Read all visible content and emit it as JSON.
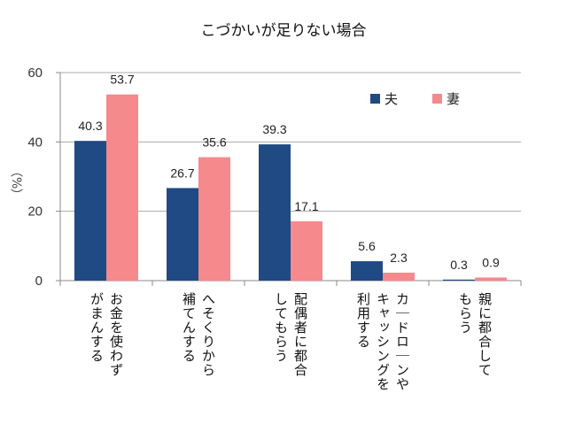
{
  "chart_data": {
    "type": "bar",
    "title": "こづかいが足りない場合",
    "xlabel": "",
    "ylabel": "（%）",
    "ylim": [
      0,
      60
    ],
    "yticks": [
      0,
      20,
      40,
      60
    ],
    "grid": true,
    "legend_position": "top-right",
    "categories": [
      "お金を使わず\nがまんする",
      "へそくりから\n補てんする",
      "配偶者に都合\nしてもらう",
      "カードローンや\nキャッシングを\n利用する",
      "親に都合して\nもらう"
    ],
    "series": [
      {
        "name": "夫",
        "color": "#1f4a84",
        "values": [
          40.3,
          26.7,
          39.3,
          5.6,
          0.3
        ]
      },
      {
        "name": "妻",
        "color": "#f5898c",
        "values": [
          53.7,
          35.6,
          17.1,
          2.3,
          0.9
        ]
      }
    ]
  }
}
